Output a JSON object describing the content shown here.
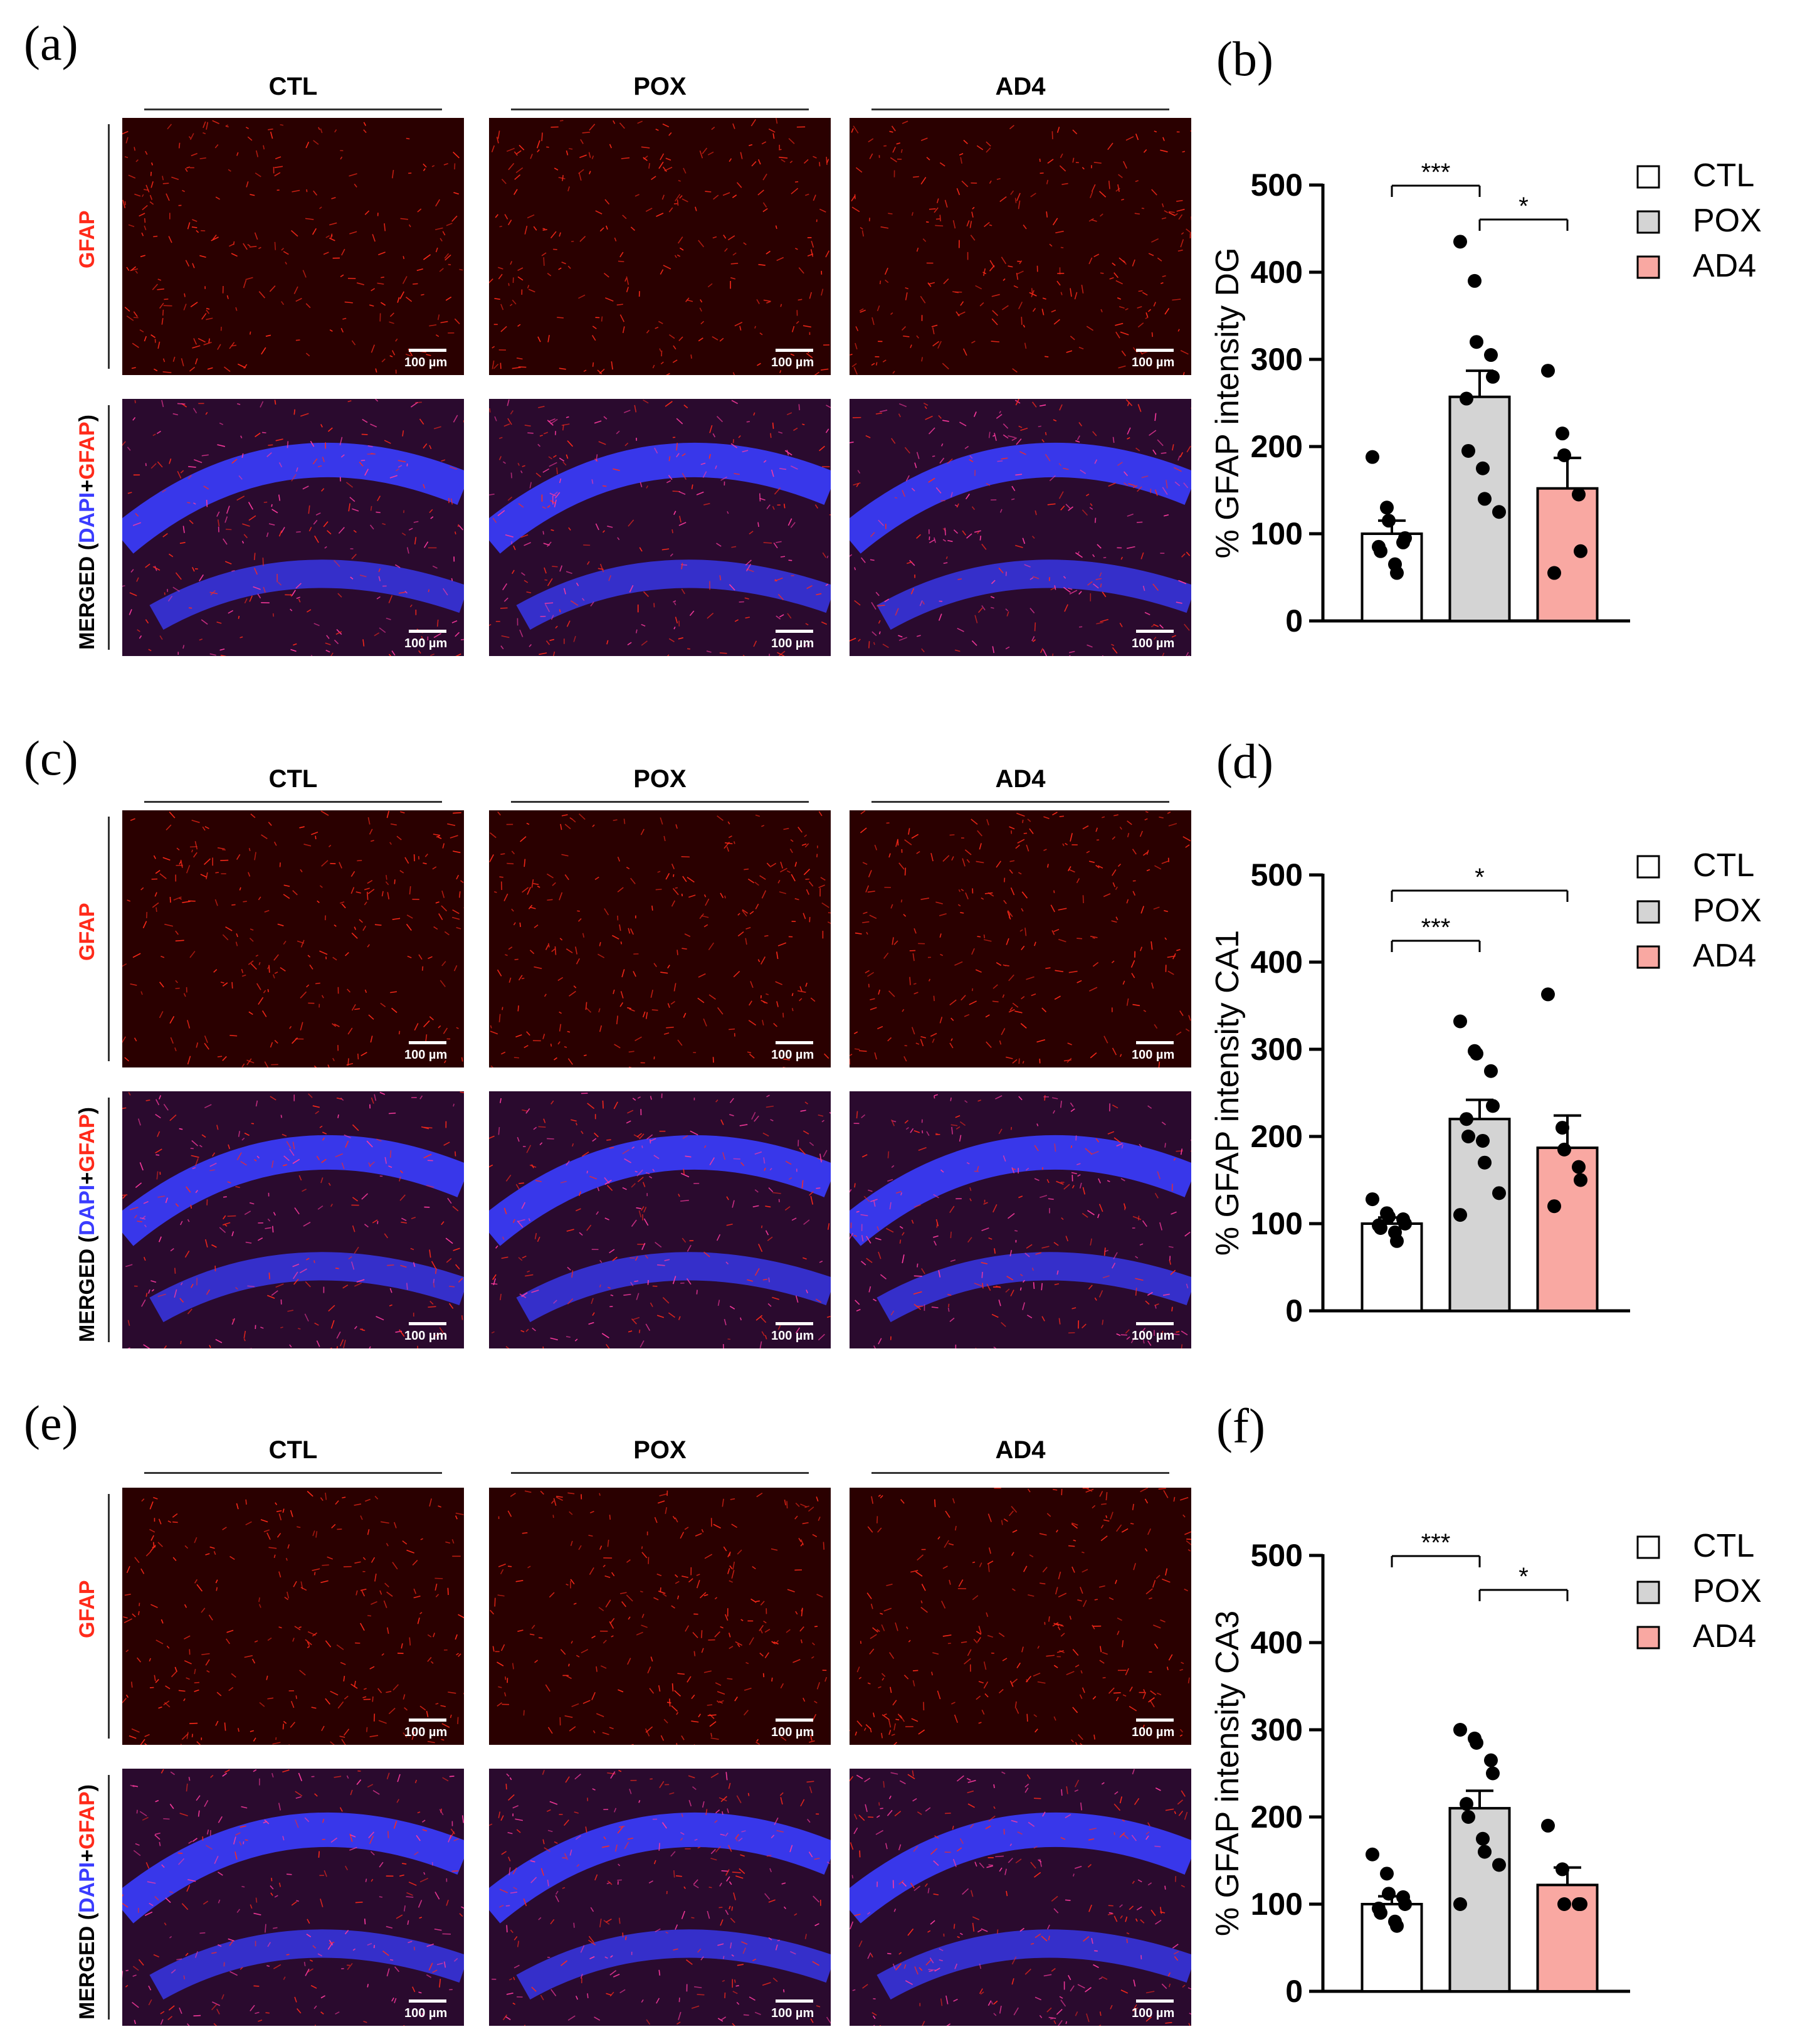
{
  "figure": {
    "panel_letters": {
      "a": "(a)",
      "b": "(b)",
      "c": "(c)",
      "d": "(d)",
      "e": "(e)",
      "f": "(f)"
    },
    "groups": [
      "CTL",
      "POX",
      "AD4"
    ],
    "row_labels": {
      "gfap": "GFAP",
      "merged_prefix": "MERGED (",
      "merged_dapi": "DAPI",
      "merged_plus": "+",
      "merged_gfap": "GFAP",
      "merged_suffix": ")"
    },
    "scale_bar_label": "100 µm",
    "colors": {
      "gfap_red": "#ff2a1a",
      "dapi_blue": "#3a3cff",
      "ctl_fill": "#ffffff",
      "pox_fill": "#d4d4d4",
      "ad4_fill": "#f9a8a2"
    }
  },
  "chart_data": [
    {
      "panel": "b",
      "type": "bar",
      "ylabel": "% GFAP intensity DG",
      "ylim": [
        0,
        500
      ],
      "yticks": [
        "0",
        "100",
        "200",
        "300",
        "400",
        "500"
      ],
      "categories": [
        "CTL",
        "POX",
        "AD4"
      ],
      "values": [
        100,
        257,
        152
      ],
      "sem": [
        15,
        30,
        35
      ],
      "points": [
        [
          188,
          130,
          115,
          90,
          95,
          85,
          80,
          65,
          55
        ],
        [
          435,
          390,
          320,
          305,
          280,
          255,
          195,
          175,
          140,
          125
        ],
        [
          287,
          215,
          190,
          145,
          80,
          55
        ]
      ],
      "legend": [
        "CTL",
        "POX",
        "AD4"
      ],
      "legend_position": "right",
      "significance": [
        {
          "from": 0,
          "to": 1,
          "label": "***"
        },
        {
          "from": 1,
          "to": 2,
          "label": "*"
        }
      ]
    },
    {
      "panel": "d",
      "type": "bar",
      "ylabel": "% GFAP intensity CA1",
      "ylim": [
        0,
        500
      ],
      "yticks": [
        "0",
        "100",
        "200",
        "300",
        "400",
        "500"
      ],
      "categories": [
        "CTL",
        "POX",
        "AD4"
      ],
      "values": [
        100,
        220,
        187
      ],
      "sem": [
        7,
        22,
        37
      ],
      "points": [
        [
          128,
          112,
          108,
          105,
          100,
          98,
          95,
          90,
          80
        ],
        [
          332,
          298,
          295,
          275,
          235,
          220,
          200,
          195,
          170,
          135,
          110
        ],
        [
          363,
          210,
          185,
          165,
          150,
          120
        ]
      ],
      "legend": [
        "CTL",
        "POX",
        "AD4"
      ],
      "legend_position": "right",
      "significance": [
        {
          "from": 0,
          "to": 1,
          "label": "***"
        },
        {
          "from": 0,
          "to": 2,
          "label": "*"
        }
      ]
    },
    {
      "panel": "f",
      "type": "bar",
      "ylabel": "% GFAP intensity CA3",
      "ylim": [
        0,
        500
      ],
      "yticks": [
        "0",
        "100",
        "200",
        "300",
        "400",
        "500"
      ],
      "categories": [
        "CTL",
        "POX",
        "AD4"
      ],
      "values": [
        100,
        210,
        122
      ],
      "sem": [
        9,
        20,
        20
      ],
      "points": [
        [
          157,
          135,
          112,
          108,
          100,
          95,
          90,
          80,
          75
        ],
        [
          300,
          290,
          285,
          265,
          250,
          215,
          200,
          175,
          160,
          145,
          100
        ],
        [
          190,
          140,
          100,
          100,
          100
        ]
      ],
      "legend": [
        "CTL",
        "POX",
        "AD4"
      ],
      "legend_position": "right",
      "significance": [
        {
          "from": 0,
          "to": 1,
          "label": "***"
        },
        {
          "from": 1,
          "to": 2,
          "label": "*"
        }
      ]
    }
  ]
}
